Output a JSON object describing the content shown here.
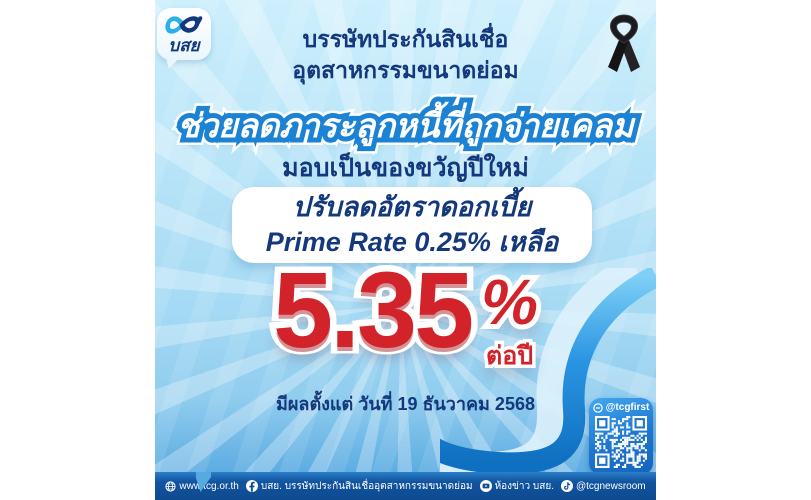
{
  "brand": {
    "logo_text": "บสย",
    "org_name_line1": "บรรษัทประกันสินเชื่อ",
    "org_name_line2": "อุตสาหกรรมขนาดย่อม"
  },
  "headline": {
    "banner": "ช่วยลดภาระลูกหนี้ที่ถูกจ่ายเคลม",
    "subtitle": "มอบเป็นของขวัญปีใหม่"
  },
  "offer": {
    "box_line1": "ปรับลดอัตราดอกเบี้ย",
    "box_line2": "Prime Rate 0.25% เหลือ",
    "rate_value": "5.35",
    "rate_unit": "%",
    "rate_period": "ต่อปี",
    "effective_date": "มีผลตั้งแต่ วันที่ 19 ธันวาคม 2568"
  },
  "qr": {
    "label": "@tcgfirst"
  },
  "footer": {
    "website": "www.tcg.or.th",
    "facebook": "บสย. บรรษัทประกันสินเชื่ออุตสาหกรรมขนาดย่อม",
    "youtube": "ห้องข่าว บสย.",
    "tiktok": "@tcgnewsroom"
  },
  "colors": {
    "navy": "#14387c",
    "banner_stroke": "#1c83d4",
    "rate_red": "#d2232a",
    "bar_blue": "#11549f",
    "bg_light": "#b4e2f7",
    "qr_box_blue": "#1d76cf"
  }
}
